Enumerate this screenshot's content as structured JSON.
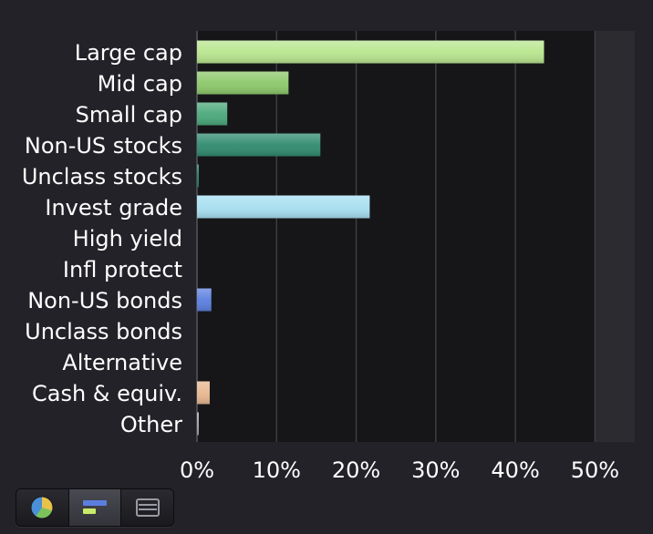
{
  "chart_data": {
    "type": "bar",
    "orientation": "horizontal",
    "categories": [
      "Large cap",
      "Mid cap",
      "Small cap",
      "Non-US stocks",
      "Unclass stocks",
      "Invest grade",
      "High yield",
      "Infl protect",
      "Non-US bonds",
      "Unclass bonds",
      "Alternative",
      "Cash & equiv.",
      "Other"
    ],
    "values": [
      43.6,
      11.5,
      3.8,
      15.5,
      0.2,
      21.7,
      0,
      0,
      1.8,
      0,
      0,
      1.6,
      0.1
    ],
    "colors": [
      "#b8e68e",
      "#8cc86a",
      "#4aa87a",
      "#2f8a6e",
      "#2a7a6a",
      "#a6dff0",
      "#9ed0e0",
      "#8ab8d8",
      "#5b7fe0",
      "#5070c8",
      "#a08070",
      "#e8b890",
      "#a0a0a8"
    ],
    "xlim": [
      0,
      55
    ],
    "xticks": [
      0,
      10,
      20,
      30,
      40,
      50
    ],
    "xtick_labels": [
      "0%",
      "10%",
      "20%",
      "30%",
      "40%",
      "50%"
    ],
    "grid": true,
    "title": "",
    "xlabel": "",
    "ylabel": ""
  },
  "view_switcher": {
    "active": "bar-view",
    "buttons": [
      "pie-chart-icon",
      "bar-chart-icon",
      "table-list-icon"
    ]
  }
}
